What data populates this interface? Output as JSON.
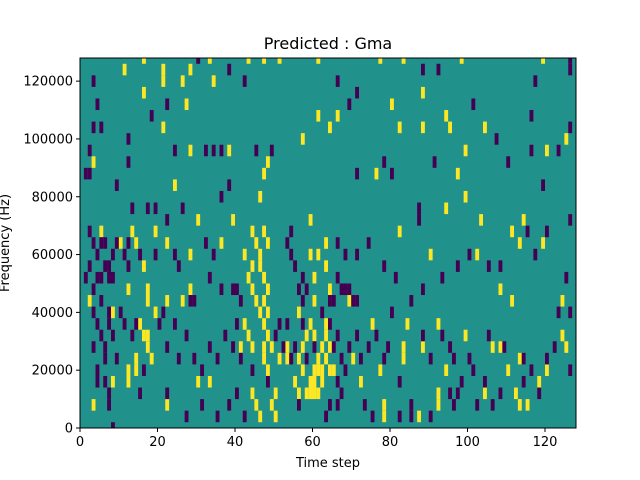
{
  "chart_data": {
    "type": "heatmap",
    "title": "Predicted : Gma",
    "xlabel": "Time step",
    "ylabel": "Frequency (Hz)",
    "xlim": [
      0,
      128
    ],
    "ylim": [
      0,
      128000
    ],
    "xticks": [
      0,
      20,
      40,
      60,
      80,
      100,
      120
    ],
    "yticks": [
      0,
      20000,
      40000,
      60000,
      80000,
      100000,
      120000
    ],
    "grid": false,
    "colors": {
      "background": "#21918c",
      "high": "#fde725",
      "low": "#440154"
    },
    "levels": [
      0,
      0.5,
      1
    ],
    "background_level": 0.5,
    "cell_width_steps": 1,
    "cell_height_hz": 4000,
    "high_cells": [
      [
        11,
        122000
      ],
      [
        16,
        126000
      ],
      [
        21,
        122000
      ],
      [
        26,
        118000
      ],
      [
        28,
        122000
      ],
      [
        33,
        126000
      ],
      [
        43,
        126000
      ],
      [
        47,
        126000
      ],
      [
        51,
        126000
      ],
      [
        61,
        126000
      ],
      [
        77,
        126000
      ],
      [
        83,
        126000
      ],
      [
        98,
        126000
      ],
      [
        119,
        126000
      ],
      [
        16,
        114000
      ],
      [
        21,
        118000
      ],
      [
        27,
        110000
      ],
      [
        34,
        118000
      ],
      [
        61,
        106000
      ],
      [
        66,
        106000
      ],
      [
        80,
        110000
      ],
      [
        88,
        114000
      ],
      [
        94,
        106000
      ],
      [
        104,
        102000
      ],
      [
        21,
        102000
      ],
      [
        28,
        94000
      ],
      [
        38,
        94000
      ],
      [
        57,
        98000
      ],
      [
        64,
        102000
      ],
      [
        82,
        102000
      ],
      [
        88,
        102000
      ],
      [
        95,
        102000
      ],
      [
        125,
        98000
      ],
      [
        99,
        94000
      ],
      [
        120,
        94000
      ],
      [
        76,
        86000
      ],
      [
        97,
        86000
      ],
      [
        3,
        90000
      ],
      [
        24,
        82000
      ],
      [
        47,
        86000
      ],
      [
        48,
        90000
      ],
      [
        99,
        78000
      ],
      [
        94,
        74000
      ],
      [
        30,
        70000
      ],
      [
        39,
        70000
      ],
      [
        46,
        78000
      ],
      [
        5,
        66000
      ],
      [
        10,
        62000
      ],
      [
        13,
        66000
      ],
      [
        14,
        62000
      ],
      [
        19,
        66000
      ],
      [
        22,
        62000
      ],
      [
        16,
        54000
      ],
      [
        28,
        58000
      ],
      [
        36,
        62000
      ],
      [
        44,
        66000
      ],
      [
        45,
        62000
      ],
      [
        46,
        58000
      ],
      [
        47,
        66000
      ],
      [
        48,
        62000
      ],
      [
        42,
        58000
      ],
      [
        43,
        50000
      ],
      [
        44,
        46000
      ],
      [
        45,
        42000
      ],
      [
        46,
        54000
      ],
      [
        47,
        50000
      ],
      [
        48,
        46000
      ],
      [
        44,
        54000
      ],
      [
        46,
        38000
      ],
      [
        47,
        42000
      ],
      [
        48,
        38000
      ],
      [
        59,
        70000
      ],
      [
        63,
        62000
      ],
      [
        63,
        54000
      ],
      [
        59,
        58000
      ],
      [
        60,
        50000
      ],
      [
        61,
        58000
      ],
      [
        60,
        42000
      ],
      [
        64,
        46000
      ],
      [
        69,
        42000
      ],
      [
        82,
        66000
      ],
      [
        90,
        58000
      ],
      [
        102,
        58000
      ],
      [
        111,
        66000
      ],
      [
        113,
        62000
      ],
      [
        119,
        62000
      ],
      [
        114,
        70000
      ],
      [
        103,
        70000
      ],
      [
        108,
        46000
      ],
      [
        111,
        42000
      ],
      [
        124,
        42000
      ],
      [
        2,
        42000
      ],
      [
        8,
        38000
      ],
      [
        12,
        46000
      ],
      [
        17,
        46000
      ],
      [
        17,
        42000
      ],
      [
        15,
        34000
      ],
      [
        16,
        30000
      ],
      [
        17,
        26000
      ],
      [
        18,
        22000
      ],
      [
        17,
        30000
      ],
      [
        19,
        38000
      ],
      [
        22,
        42000
      ],
      [
        26,
        42000
      ],
      [
        28,
        46000
      ],
      [
        14,
        22000
      ],
      [
        14,
        18000
      ],
      [
        12,
        18000
      ],
      [
        42,
        34000
      ],
      [
        43,
        30000
      ],
      [
        44,
        26000
      ],
      [
        41,
        26000
      ],
      [
        47,
        34000
      ],
      [
        48,
        30000
      ],
      [
        49,
        26000
      ],
      [
        47,
        22000
      ],
      [
        48,
        18000
      ],
      [
        47,
        26000
      ],
      [
        51,
        22000
      ],
      [
        53,
        22000
      ],
      [
        56,
        38000
      ],
      [
        56,
        22000
      ],
      [
        57,
        26000
      ],
      [
        57,
        18000
      ],
      [
        58,
        30000
      ],
      [
        59,
        34000
      ],
      [
        58,
        10000
      ],
      [
        59,
        14000
      ],
      [
        60,
        18000
      ],
      [
        60,
        14000
      ],
      [
        61,
        10000
      ],
      [
        62,
        14000
      ],
      [
        62,
        18000
      ],
      [
        62,
        26000
      ],
      [
        63,
        30000
      ],
      [
        63,
        22000
      ],
      [
        64,
        18000
      ],
      [
        64,
        26000
      ],
      [
        65,
        18000
      ],
      [
        61,
        18000
      ],
      [
        61,
        22000
      ],
      [
        60,
        30000
      ],
      [
        63,
        34000
      ],
      [
        55,
        14000
      ],
      [
        56,
        10000
      ],
      [
        53,
        26000
      ],
      [
        59,
        10000
      ],
      [
        60,
        10000
      ],
      [
        75,
        34000
      ],
      [
        77,
        18000
      ],
      [
        70,
        22000
      ],
      [
        72,
        14000
      ],
      [
        83,
        22000
      ],
      [
        83,
        26000
      ],
      [
        84,
        34000
      ],
      [
        88,
        26000
      ],
      [
        92,
        34000
      ],
      [
        99,
        30000
      ],
      [
        106,
        26000
      ],
      [
        108,
        26000
      ],
      [
        110,
        18000
      ],
      [
        113,
        22000
      ],
      [
        120,
        18000
      ],
      [
        124,
        30000
      ],
      [
        118,
        14000
      ],
      [
        112,
        10000
      ],
      [
        113,
        6000
      ],
      [
        104,
        10000
      ],
      [
        94,
        18000
      ],
      [
        92,
        10000
      ],
      [
        115,
        6000
      ],
      [
        125,
        26000
      ],
      [
        44,
        10000
      ],
      [
        45,
        6000
      ],
      [
        46,
        2000
      ],
      [
        49,
        6000
      ],
      [
        50,
        2000
      ],
      [
        50,
        10000
      ],
      [
        78,
        6000
      ],
      [
        78,
        2000
      ],
      [
        87,
        2000
      ],
      [
        92,
        6000
      ],
      [
        3,
        6000
      ],
      [
        8,
        14000
      ],
      [
        12,
        14000
      ],
      [
        22,
        6000
      ],
      [
        30,
        14000
      ],
      [
        33,
        14000
      ]
    ],
    "low_cells": [
      [
        3,
        118000
      ],
      [
        4,
        110000
      ],
      [
        3,
        102000
      ],
      [
        5,
        102000
      ],
      [
        12,
        98000
      ],
      [
        18,
        106000
      ],
      [
        22,
        110000
      ],
      [
        30,
        126000
      ],
      [
        38,
        122000
      ],
      [
        42,
        118000
      ],
      [
        66,
        118000
      ],
      [
        71,
        114000
      ],
      [
        69,
        110000
      ],
      [
        88,
        122000
      ],
      [
        92,
        122000
      ],
      [
        101,
        110000
      ],
      [
        107,
        98000
      ],
      [
        117,
        118000
      ],
      [
        116,
        106000
      ],
      [
        126,
        102000
      ],
      [
        126,
        126000
      ],
      [
        126,
        122000
      ],
      [
        2,
        94000
      ],
      [
        12,
        90000
      ],
      [
        24,
        94000
      ],
      [
        32,
        94000
      ],
      [
        34,
        94000
      ],
      [
        36,
        94000
      ],
      [
        45,
        94000
      ],
      [
        49,
        94000
      ],
      [
        78,
        90000
      ],
      [
        91,
        90000
      ],
      [
        110,
        90000
      ],
      [
        116,
        94000
      ],
      [
        123,
        94000
      ],
      [
        1,
        86000
      ],
      [
        2,
        86000
      ],
      [
        9,
        82000
      ],
      [
        38,
        82000
      ],
      [
        71,
        86000
      ],
      [
        80,
        86000
      ],
      [
        119,
        82000
      ],
      [
        13,
        74000
      ],
      [
        17,
        74000
      ],
      [
        19,
        74000
      ],
      [
        22,
        70000
      ],
      [
        26,
        74000
      ],
      [
        36,
        78000
      ],
      [
        87,
        74000
      ],
      [
        87,
        70000
      ],
      [
        126,
        70000
      ],
      [
        120,
        66000
      ],
      [
        2,
        66000
      ],
      [
        3,
        62000
      ],
      [
        4,
        58000
      ],
      [
        5,
        62000
      ],
      [
        6,
        54000
      ],
      [
        7,
        50000
      ],
      [
        8,
        58000
      ],
      [
        5,
        50000
      ],
      [
        2,
        54000
      ],
      [
        1,
        50000
      ],
      [
        3,
        46000
      ],
      [
        4,
        50000
      ],
      [
        6,
        62000
      ],
      [
        7,
        54000
      ],
      [
        8,
        50000
      ],
      [
        11,
        58000
      ],
      [
        12,
        54000
      ],
      [
        9,
        62000
      ],
      [
        12,
        62000
      ],
      [
        15,
        58000
      ],
      [
        19,
        58000
      ],
      [
        24,
        58000
      ],
      [
        25,
        54000
      ],
      [
        32,
        62000
      ],
      [
        34,
        58000
      ],
      [
        33,
        50000
      ],
      [
        28,
        42000
      ],
      [
        29,
        42000
      ],
      [
        36,
        46000
      ],
      [
        39,
        46000
      ],
      [
        40,
        46000
      ],
      [
        41,
        42000
      ],
      [
        53,
        62000
      ],
      [
        54,
        58000
      ],
      [
        54,
        66000
      ],
      [
        55,
        54000
      ],
      [
        56,
        46000
      ],
      [
        57,
        50000
      ],
      [
        57,
        42000
      ],
      [
        58,
        46000
      ],
      [
        64,
        42000
      ],
      [
        65,
        42000
      ],
      [
        66,
        50000
      ],
      [
        67,
        46000
      ],
      [
        68,
        46000
      ],
      [
        69,
        46000
      ],
      [
        70,
        42000
      ],
      [
        71,
        42000
      ],
      [
        66,
        62000
      ],
      [
        68,
        58000
      ],
      [
        71,
        58000
      ],
      [
        74,
        62000
      ],
      [
        78,
        54000
      ],
      [
        81,
        50000
      ],
      [
        85,
        42000
      ],
      [
        88,
        46000
      ],
      [
        93,
        50000
      ],
      [
        97,
        54000
      ],
      [
        100,
        58000
      ],
      [
        105,
        54000
      ],
      [
        108,
        54000
      ],
      [
        115,
        66000
      ],
      [
        117,
        58000
      ],
      [
        125,
        50000
      ],
      [
        126,
        38000
      ],
      [
        123,
        38000
      ],
      [
        3,
        38000
      ],
      [
        4,
        34000
      ],
      [
        5,
        30000
      ],
      [
        6,
        26000
      ],
      [
        7,
        34000
      ],
      [
        7,
        38000
      ],
      [
        8,
        30000
      ],
      [
        6,
        22000
      ],
      [
        5,
        42000
      ],
      [
        4,
        18000
      ],
      [
        6,
        14000
      ],
      [
        7,
        10000
      ],
      [
        3,
        26000
      ],
      [
        9,
        22000
      ],
      [
        10,
        38000
      ],
      [
        11,
        34000
      ],
      [
        13,
        30000
      ],
      [
        14,
        34000
      ],
      [
        16,
        18000
      ],
      [
        20,
        34000
      ],
      [
        21,
        38000
      ],
      [
        22,
        26000
      ],
      [
        24,
        34000
      ],
      [
        25,
        22000
      ],
      [
        27,
        30000
      ],
      [
        29,
        22000
      ],
      [
        31,
        18000
      ],
      [
        33,
        26000
      ],
      [
        35,
        22000
      ],
      [
        37,
        30000
      ],
      [
        39,
        26000
      ],
      [
        40,
        34000
      ],
      [
        41,
        22000
      ],
      [
        44,
        18000
      ],
      [
        50,
        30000
      ],
      [
        51,
        34000
      ],
      [
        52,
        26000
      ],
      [
        53,
        34000
      ],
      [
        54,
        22000
      ],
      [
        55,
        26000
      ],
      [
        57,
        34000
      ],
      [
        58,
        22000
      ],
      [
        60,
        26000
      ],
      [
        62,
        38000
      ],
      [
        64,
        34000
      ],
      [
        65,
        26000
      ],
      [
        66,
        30000
      ],
      [
        67,
        22000
      ],
      [
        67,
        10000
      ],
      [
        66,
        14000
      ],
      [
        66,
        6000
      ],
      [
        68,
        18000
      ],
      [
        69,
        26000
      ],
      [
        71,
        30000
      ],
      [
        72,
        22000
      ],
      [
        74,
        26000
      ],
      [
        76,
        30000
      ],
      [
        78,
        22000
      ],
      [
        79,
        26000
      ],
      [
        80,
        38000
      ],
      [
        82,
        14000
      ],
      [
        88,
        30000
      ],
      [
        90,
        22000
      ],
      [
        93,
        30000
      ],
      [
        95,
        26000
      ],
      [
        96,
        22000
      ],
      [
        98,
        14000
      ],
      [
        100,
        22000
      ],
      [
        101,
        18000
      ],
      [
        105,
        30000
      ],
      [
        109,
        26000
      ],
      [
        114,
        22000
      ],
      [
        116,
        18000
      ],
      [
        120,
        22000
      ],
      [
        122,
        26000
      ],
      [
        126,
        18000
      ],
      [
        114,
        14000
      ],
      [
        118,
        10000
      ],
      [
        97,
        10000
      ],
      [
        96,
        6000
      ],
      [
        102,
        6000
      ],
      [
        104,
        14000
      ],
      [
        106,
        6000
      ],
      [
        108,
        10000
      ],
      [
        73,
        6000
      ],
      [
        85,
        6000
      ],
      [
        90,
        2000
      ],
      [
        95,
        10000
      ],
      [
        75,
        2000
      ],
      [
        38,
        6000
      ],
      [
        40,
        10000
      ],
      [
        42,
        2000
      ],
      [
        48,
        14000
      ],
      [
        56,
        6000
      ],
      [
        31,
        6000
      ],
      [
        22,
        10000
      ],
      [
        15,
        10000
      ],
      [
        7,
        6000
      ],
      [
        8,
        -2000
      ],
      [
        27,
        2000
      ],
      [
        35,
        2000
      ],
      [
        63,
        2000
      ],
      [
        64,
        6000
      ],
      [
        82,
        2000
      ],
      [
        85,
        2000
      ],
      [
        4,
        14000
      ]
    ]
  }
}
